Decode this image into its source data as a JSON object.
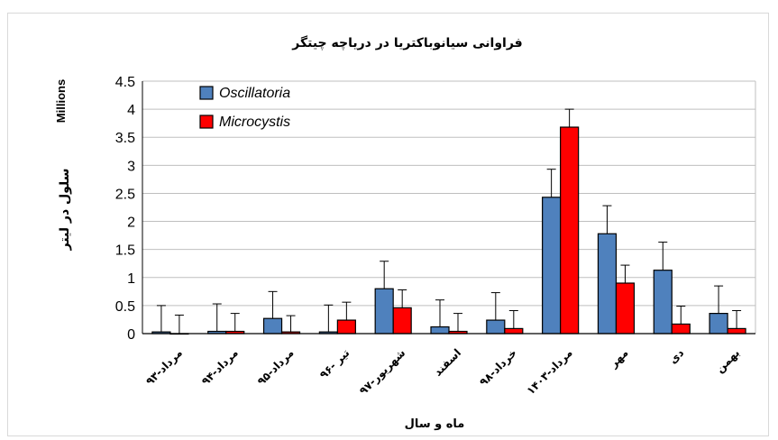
{
  "chart_data": {
    "type": "bar",
    "title": "فراوانی سیانوباکتریا در دریاچه چیتگر",
    "xlabel": "ماه و سال",
    "ylabel": "سلول در لیتر",
    "y_multiplier_label": "Millions",
    "ylim": [
      0,
      4.5
    ],
    "yticks": [
      "0",
      "0.5",
      "1",
      "1.5",
      "2",
      "2.5",
      "3",
      "3.5",
      "4",
      "4.5"
    ],
    "grid": true,
    "legend_position": "top-left",
    "categories": [
      "مرداد-۹۳",
      "مرداد-۹۴",
      "مرداد-۹۵",
      "تیر -۹۶",
      "شهریور-۹۷",
      "اسفند",
      "خرداد-۹۸",
      "مرداد-۱۴۰۳",
      "مهر",
      "دی",
      "بهمن"
    ],
    "series": [
      {
        "name": "Oscillatoria",
        "color": "#4f81bd",
        "values": [
          0.03,
          0.04,
          0.27,
          0.03,
          0.8,
          0.12,
          0.24,
          2.43,
          1.78,
          1.13,
          0.36
        ],
        "error": [
          0.47,
          0.49,
          0.48,
          0.48,
          0.49,
          0.48,
          0.49,
          0.5,
          0.5,
          0.5,
          0.49
        ]
      },
      {
        "name": "Microcystis",
        "color": "#ff0000",
        "values": [
          0.0,
          0.04,
          0.03,
          0.24,
          0.46,
          0.04,
          0.09,
          3.68,
          0.9,
          0.17,
          0.09
        ],
        "error": [
          0.33,
          0.32,
          0.29,
          0.32,
          0.32,
          0.32,
          0.32,
          0.32,
          0.32,
          0.32,
          0.32
        ]
      }
    ]
  }
}
